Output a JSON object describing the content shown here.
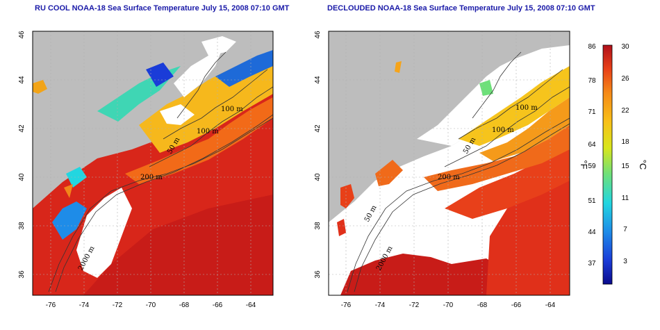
{
  "maps": [
    {
      "title": "RU COOL NOAA-18 Sea Surface Temperature July 15, 2008 07:10 GMT",
      "lon_ticks": [
        "-76",
        "-74",
        "-72",
        "-70",
        "-68",
        "-66",
        "-64"
      ],
      "lat_ticks": [
        "36",
        "38",
        "40",
        "42",
        "44",
        "46"
      ],
      "contour_labels": [
        "100 m",
        "100 m",
        "50 m",
        "200 m",
        "2000 m"
      ]
    },
    {
      "title": "DECLOUDED NOAA-18 Sea Surface Temperature July 15, 2008 07:10 GMT",
      "lon_ticks": [
        "-76",
        "-74",
        "-72",
        "-70",
        "-68",
        "-66",
        "-64"
      ],
      "lat_ticks": [
        "36",
        "38",
        "40",
        "42",
        "44",
        "46"
      ],
      "contour_labels": [
        "100 m",
        "100 m",
        "50 m",
        "200 m",
        "50 m",
        "2000 m"
      ]
    }
  ],
  "colorbar": {
    "fahrenheit_ticks": [
      "86",
      "78",
      "71",
      "64",
      "59",
      "51",
      "44",
      "37"
    ],
    "celsius_ticks": [
      "30",
      "26",
      "22",
      "18",
      "15",
      "11",
      "7",
      "3"
    ],
    "left_unit": "°F",
    "right_unit": "°C",
    "colors": [
      "#0a0a8c",
      "#1a3cd8",
      "#1e8ce8",
      "#22d6e0",
      "#6ee07a",
      "#d8e61c",
      "#f8c018",
      "#f58a18",
      "#e84018",
      "#b0101a"
    ]
  },
  "colors": {
    "title": "#1a1aa8",
    "land": "#bdbdbd",
    "cloud": "#ffffff",
    "grid": "#b0b0b0"
  }
}
